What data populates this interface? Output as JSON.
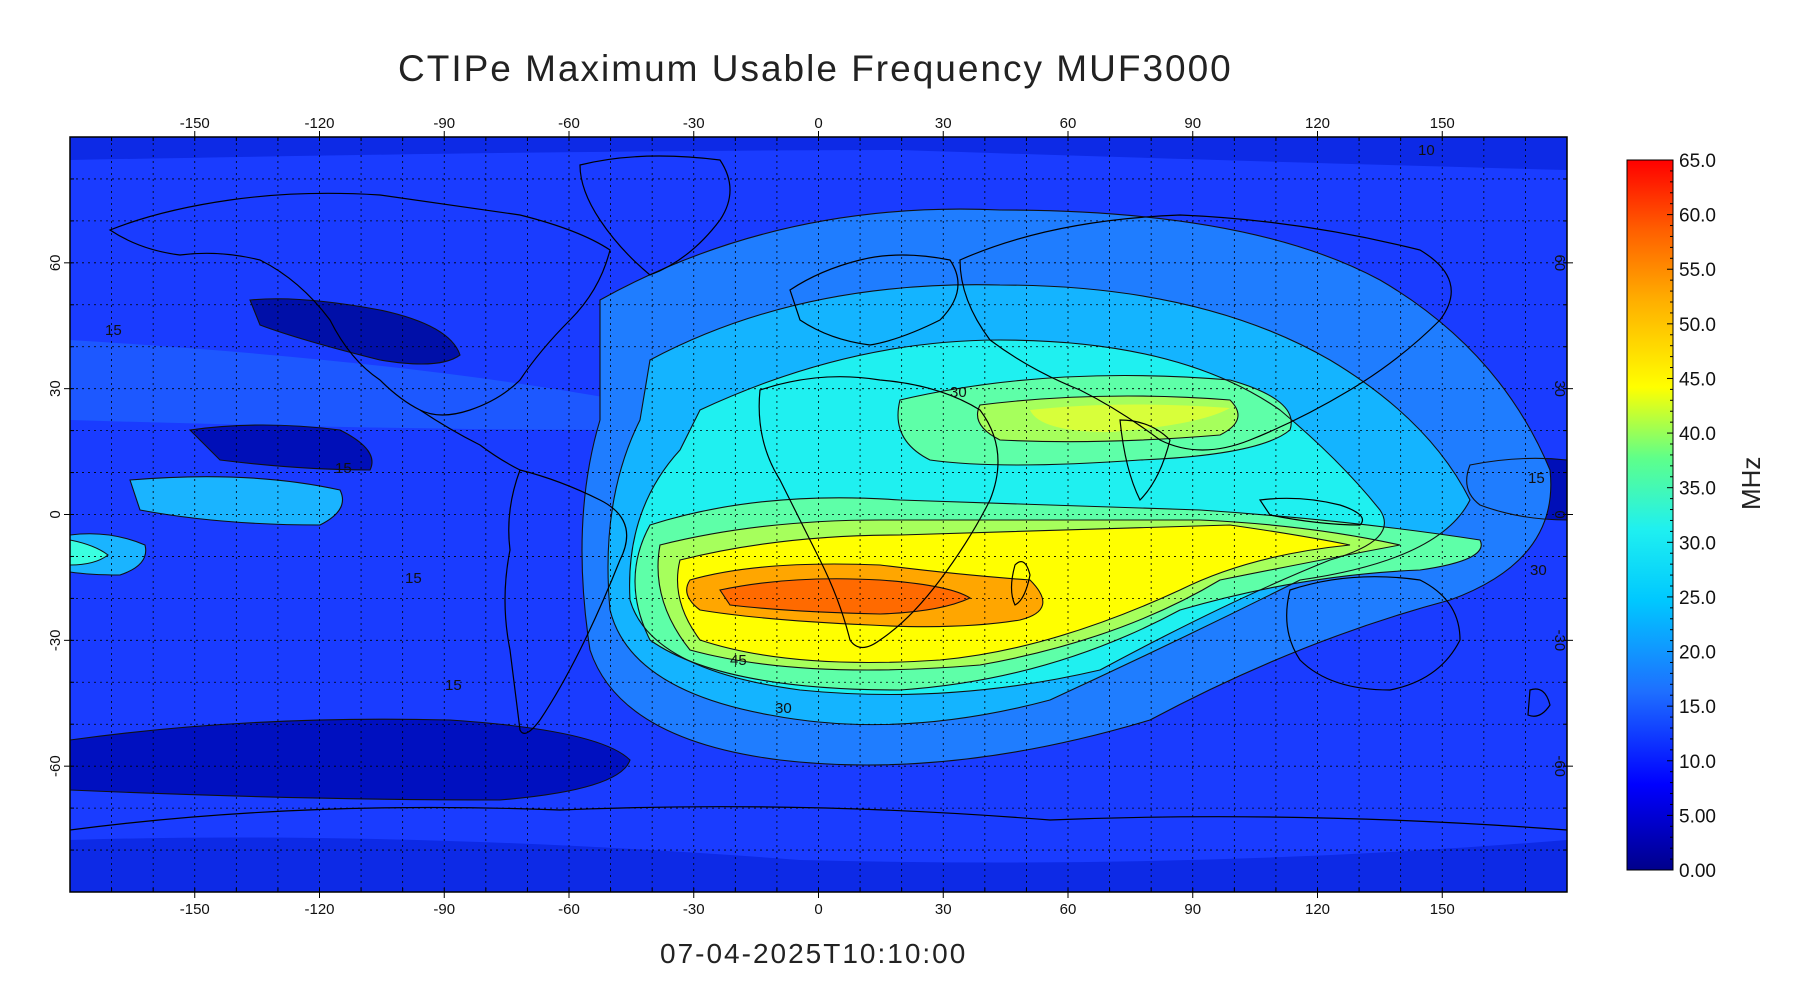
{
  "title": "CTIPe Maximum Usable Frequency MUF3000",
  "timestamp": "07-04-2025T10:10:00",
  "colorbar": {
    "unit": "MHz",
    "ticks": [
      "0.00",
      "5.00",
      "10.0",
      "15.0",
      "20.0",
      "25.0",
      "30.0",
      "35.0",
      "40.0",
      "45.0",
      "50.0",
      "55.0",
      "60.0",
      "65.0"
    ],
    "range": [
      0,
      65
    ]
  },
  "axes": {
    "lon_ticks": [
      "-150",
      "-120",
      "-90",
      "-60",
      "-30",
      "0",
      "30",
      "60",
      "90",
      "120",
      "150"
    ],
    "lat_ticks": [
      "60",
      "30",
      "0",
      "-30",
      "-60"
    ]
  },
  "contour_labels": [
    "15",
    "15",
    "15",
    "15",
    "15",
    "30",
    "30",
    "30",
    "45",
    "10"
  ],
  "chart_data": {
    "type": "heatmap",
    "title": "CTIPe Maximum Usable Frequency MUF3000",
    "variable": "MUF3000",
    "unit": "MHz",
    "xlim": [
      -180,
      180
    ],
    "ylim": [
      -90,
      90
    ],
    "grid": true,
    "color_range": [
      0,
      65
    ],
    "colors": [
      "#00008b",
      "#0000ff",
      "#1e6eff",
      "#00c8ff",
      "#28ff96",
      "#ffff00",
      "#ff8c00",
      "#ff0000"
    ]
  }
}
